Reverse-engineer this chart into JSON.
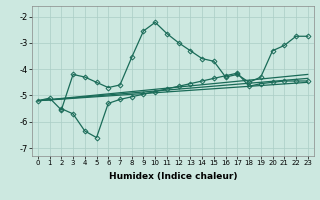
{
  "xlabel": "Humidex (Indice chaleur)",
  "bg_color": "#cce8e0",
  "grid_color": "#aacec6",
  "line_color": "#1a6b58",
  "xlim": [
    -0.5,
    23.5
  ],
  "ylim": [
    -7.3,
    -1.6
  ],
  "xticks": [
    0,
    1,
    2,
    3,
    4,
    5,
    6,
    7,
    8,
    9,
    10,
    11,
    12,
    13,
    14,
    15,
    16,
    17,
    18,
    19,
    20,
    21,
    22,
    23
  ],
  "yticks": [
    -7,
    -6,
    -5,
    -4,
    -3,
    -2
  ],
  "line1_x": [
    0,
    1,
    2,
    3,
    4,
    5,
    6,
    7,
    8,
    9,
    10,
    11,
    12,
    13,
    14,
    15,
    16,
    17,
    18,
    19,
    20,
    21,
    22,
    23
  ],
  "line1_y": [
    -5.2,
    -5.1,
    -5.55,
    -4.2,
    -4.3,
    -4.5,
    -4.7,
    -4.6,
    -3.55,
    -2.55,
    -2.22,
    -2.65,
    -3.0,
    -3.3,
    -3.6,
    -3.7,
    -4.3,
    -4.2,
    -4.5,
    -4.3,
    -3.3,
    -3.1,
    -2.75,
    -2.75
  ],
  "line2_x": [
    2,
    3,
    4,
    5,
    6,
    7,
    8,
    9,
    10,
    11,
    12,
    13,
    14,
    15,
    16,
    17,
    18,
    19,
    20,
    21,
    22,
    23
  ],
  "line2_y": [
    -5.5,
    -5.7,
    -6.35,
    -6.6,
    -5.3,
    -5.15,
    -5.05,
    -4.95,
    -4.85,
    -4.75,
    -4.65,
    -4.55,
    -4.45,
    -4.35,
    -4.25,
    -4.15,
    -4.65,
    -4.55,
    -4.5,
    -4.45,
    -4.45,
    -4.45
  ],
  "line3_x": [
    0,
    23
  ],
  "line3_y": [
    -5.2,
    -4.5
  ],
  "line4_x": [
    0,
    23
  ],
  "line4_y": [
    -5.2,
    -4.35
  ],
  "line5_x": [
    0,
    23
  ],
  "line5_y": [
    -5.2,
    -4.2
  ]
}
